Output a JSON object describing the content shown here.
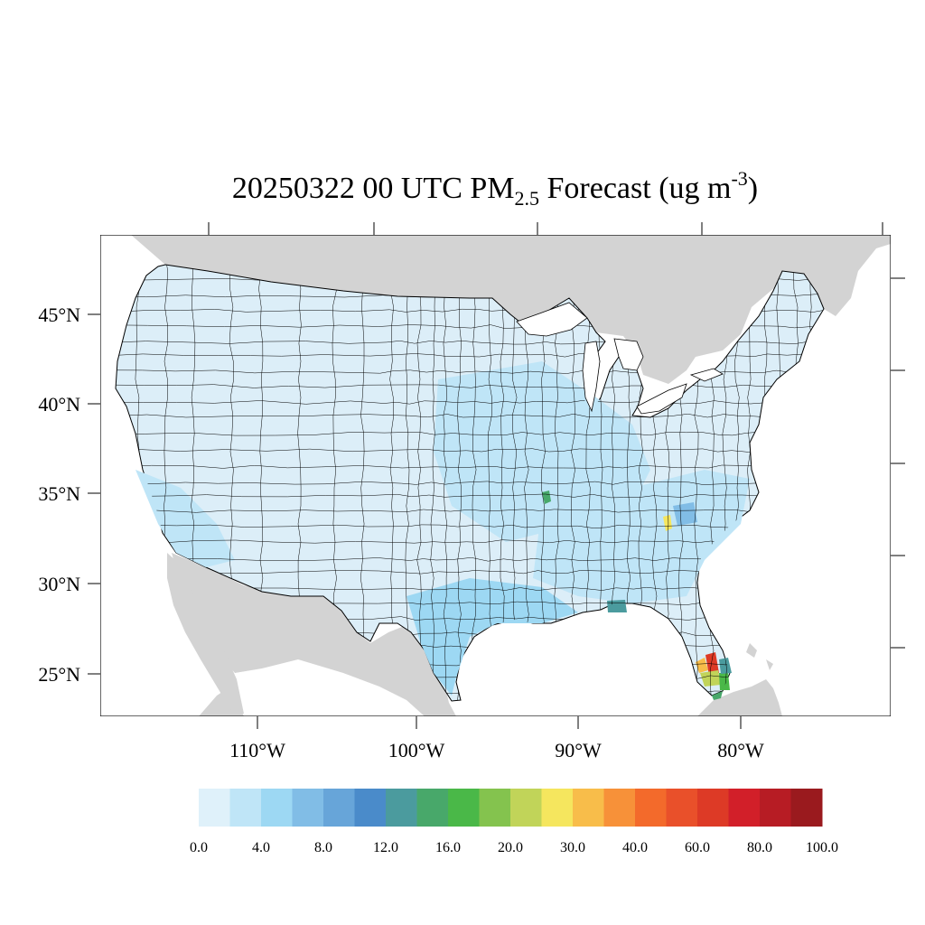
{
  "title": {
    "prefix": "20250322 00 UTC PM",
    "subscript": "2.5",
    "middle": " Forecast (ug m",
    "superscript": "-3",
    "suffix": ")"
  },
  "map": {
    "projection": "lambert-conformal-conus",
    "lat_ticks": [
      {
        "value": 45,
        "label": "45°N"
      },
      {
        "value": 40,
        "label": "40°N"
      },
      {
        "value": 35,
        "label": "35°N"
      },
      {
        "value": 30,
        "label": "30°N"
      },
      {
        "value": 25,
        "label": "25°N"
      }
    ],
    "lon_ticks": [
      {
        "value": -110,
        "label": "110°W"
      },
      {
        "value": -100,
        "label": "100°W"
      },
      {
        "value": -90,
        "label": "90°W"
      },
      {
        "value": -80,
        "label": "80°W"
      }
    ],
    "colors": {
      "ocean": "#ffffff",
      "land_outside": "#d3d3d3",
      "county_border": "#000000"
    },
    "county_fill_note": "mostly lowest bins, higher values in south florida"
  },
  "colorbar": {
    "colors": [
      "#dff1fa",
      "#bfe5f7",
      "#9dd8f3",
      "#81bde6",
      "#67a5d9",
      "#4a8bca",
      "#4b9b9e",
      "#48a86a",
      "#4ab848",
      "#84c34e",
      "#c1d459",
      "#f5e65e",
      "#f8bd4a",
      "#f79139",
      "#f36a2b",
      "#e9502a",
      "#dd3a26",
      "#d21f29",
      "#b71c24",
      "#9a1a1e"
    ],
    "labels": [
      "0.0",
      "4.0",
      "8.0",
      "12.0",
      "16.0",
      "20.0",
      "30.0",
      "40.0",
      "60.0",
      "80.0",
      "100.0"
    ]
  }
}
